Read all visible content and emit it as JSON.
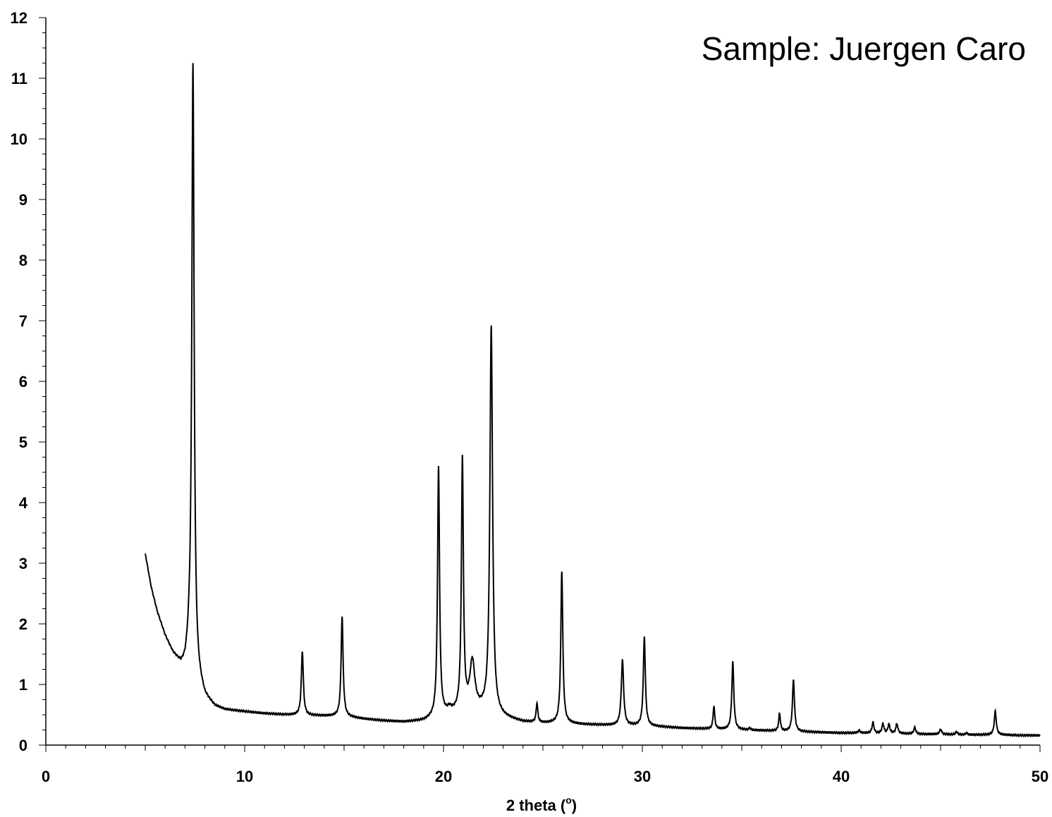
{
  "chart_data": {
    "type": "line",
    "title": "",
    "annotation": "Sample: Juergen Caro",
    "xlabel": "2 theta (",
    "xlabel_unit": "o",
    "xlabel_close": ")",
    "ylabel": "",
    "xlim": [
      0,
      50
    ],
    "ylim": [
      0,
      12
    ],
    "x_ticks": [
      0,
      10,
      20,
      30,
      40,
      50
    ],
    "x_tick_labels": [
      "0",
      "10",
      "20",
      "30",
      "40",
      "50"
    ],
    "y_ticks": [
      0,
      1,
      2,
      3,
      4,
      5,
      6,
      7,
      8,
      9,
      10,
      11,
      12
    ],
    "y_tick_labels": [
      "0",
      "1",
      "2",
      "3",
      "4",
      "5",
      "6",
      "7",
      "8",
      "9",
      "10",
      "11",
      "12"
    ],
    "grid": false,
    "line_color": "#000000",
    "series": [
      {
        "x_range": [
          5,
          50
        ],
        "baseline_points": [
          [
            5.0,
            3.15
          ],
          [
            5.3,
            2.6
          ],
          [
            5.6,
            2.2
          ],
          [
            6.0,
            1.8
          ],
          [
            6.4,
            1.5
          ],
          [
            6.8,
            1.3
          ],
          [
            7.0,
            1.3
          ],
          [
            7.2,
            1.5
          ],
          [
            7.6,
            1.1
          ],
          [
            8.0,
            0.78
          ],
          [
            8.5,
            0.63
          ],
          [
            9.0,
            0.58
          ],
          [
            10.0,
            0.55
          ],
          [
            11.0,
            0.52
          ],
          [
            12.0,
            0.5
          ],
          [
            13.0,
            0.49
          ],
          [
            14.0,
            0.48
          ],
          [
            15.0,
            0.47
          ],
          [
            16.0,
            0.43
          ],
          [
            17.0,
            0.4
          ],
          [
            18.0,
            0.38
          ],
          [
            19.0,
            0.4
          ],
          [
            20.0,
            0.5
          ],
          [
            21.0,
            0.55
          ],
          [
            22.0,
            0.55
          ],
          [
            23.0,
            0.45
          ],
          [
            24.0,
            0.38
          ],
          [
            25.0,
            0.36
          ],
          [
            26.0,
            0.36
          ],
          [
            27.0,
            0.34
          ],
          [
            28.0,
            0.33
          ],
          [
            29.0,
            0.32
          ],
          [
            30.0,
            0.32
          ],
          [
            31.0,
            0.3
          ],
          [
            32.0,
            0.28
          ],
          [
            33.0,
            0.27
          ],
          [
            34.0,
            0.26
          ],
          [
            35.0,
            0.25
          ],
          [
            36.0,
            0.24
          ],
          [
            37.0,
            0.23
          ],
          [
            38.0,
            0.22
          ],
          [
            39.0,
            0.21
          ],
          [
            40.0,
            0.2
          ],
          [
            41.0,
            0.2
          ],
          [
            42.0,
            0.19
          ],
          [
            43.0,
            0.19
          ],
          [
            44.0,
            0.18
          ],
          [
            45.0,
            0.18
          ],
          [
            46.0,
            0.17
          ],
          [
            47.0,
            0.17
          ],
          [
            48.0,
            0.17
          ],
          [
            49.0,
            0.16
          ],
          [
            50.0,
            0.16
          ]
        ],
        "peaks": [
          {
            "x": 7.4,
            "y": 11.25,
            "width": 0.07
          },
          {
            "x": 12.9,
            "y": 1.55,
            "width": 0.06
          },
          {
            "x": 14.9,
            "y": 2.12,
            "width": 0.06
          },
          {
            "x": 19.75,
            "y": 4.58,
            "width": 0.06
          },
          {
            "x": 20.3,
            "y": 0.58,
            "width": 0.1
          },
          {
            "x": 20.95,
            "y": 4.68,
            "width": 0.06
          },
          {
            "x": 21.45,
            "y": 1.35,
            "width": 0.15
          },
          {
            "x": 22.4,
            "y": 6.9,
            "width": 0.08
          },
          {
            "x": 24.7,
            "y": 0.68,
            "width": 0.05
          },
          {
            "x": 25.95,
            "y": 2.87,
            "width": 0.06
          },
          {
            "x": 29.0,
            "y": 1.4,
            "width": 0.07
          },
          {
            "x": 30.1,
            "y": 1.79,
            "width": 0.06
          },
          {
            "x": 33.6,
            "y": 0.64,
            "width": 0.05
          },
          {
            "x": 34.55,
            "y": 1.37,
            "width": 0.06
          },
          {
            "x": 35.4,
            "y": 0.28,
            "width": 0.05
          },
          {
            "x": 36.9,
            "y": 0.52,
            "width": 0.05
          },
          {
            "x": 37.6,
            "y": 1.08,
            "width": 0.06
          },
          {
            "x": 40.9,
            "y": 0.24,
            "width": 0.06
          },
          {
            "x": 41.6,
            "y": 0.37,
            "width": 0.06
          },
          {
            "x": 42.1,
            "y": 0.35,
            "width": 0.06
          },
          {
            "x": 42.4,
            "y": 0.34,
            "width": 0.06
          },
          {
            "x": 42.8,
            "y": 0.35,
            "width": 0.06
          },
          {
            "x": 43.7,
            "y": 0.29,
            "width": 0.06
          },
          {
            "x": 45.0,
            "y": 0.26,
            "width": 0.06
          },
          {
            "x": 45.8,
            "y": 0.22,
            "width": 0.06
          },
          {
            "x": 46.3,
            "y": 0.2,
            "width": 0.06
          },
          {
            "x": 47.75,
            "y": 0.56,
            "width": 0.06
          }
        ]
      }
    ]
  }
}
